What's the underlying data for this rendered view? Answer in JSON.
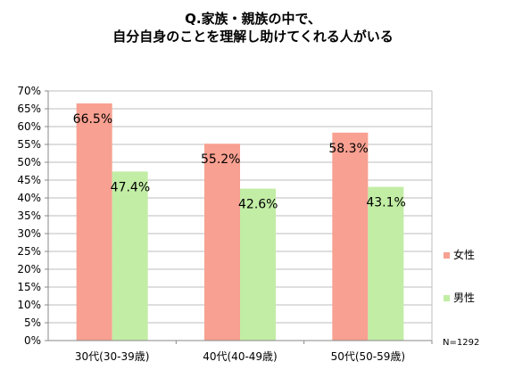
{
  "title_line1": "Q.家族・親族の中で、",
  "title_line2": "自分自身のことを理解し助けてくれる人がいる",
  "note": "N=1292",
  "chart_data": {
    "type": "bar",
    "title": "Q.家族・親族の中で、自分自身のことを理解し助けてくれる人がいる",
    "categories": [
      "30代(30-39歳)",
      "40代(40-49歳)",
      "50代(50-59歳)"
    ],
    "series": [
      {
        "name": "女性",
        "values": [
          66.5,
          55.2,
          58.3
        ],
        "labels": [
          "66.5%",
          "55.2%",
          "58.3%"
        ],
        "color": "#F8A091"
      },
      {
        "name": "男性",
        "values": [
          47.4,
          42.6,
          43.1
        ],
        "labels": [
          "47.4%",
          "42.6%",
          "43.1%"
        ],
        "color": "#C2EDA5"
      }
    ],
    "ylim": [
      0,
      70
    ],
    "yticks": [
      "0%",
      "5%",
      "10%",
      "15%",
      "20%",
      "25%",
      "30%",
      "35%",
      "40%",
      "45%",
      "50%",
      "55%",
      "60%",
      "65%",
      "70%"
    ],
    "grid": true,
    "legend_position": "right"
  }
}
